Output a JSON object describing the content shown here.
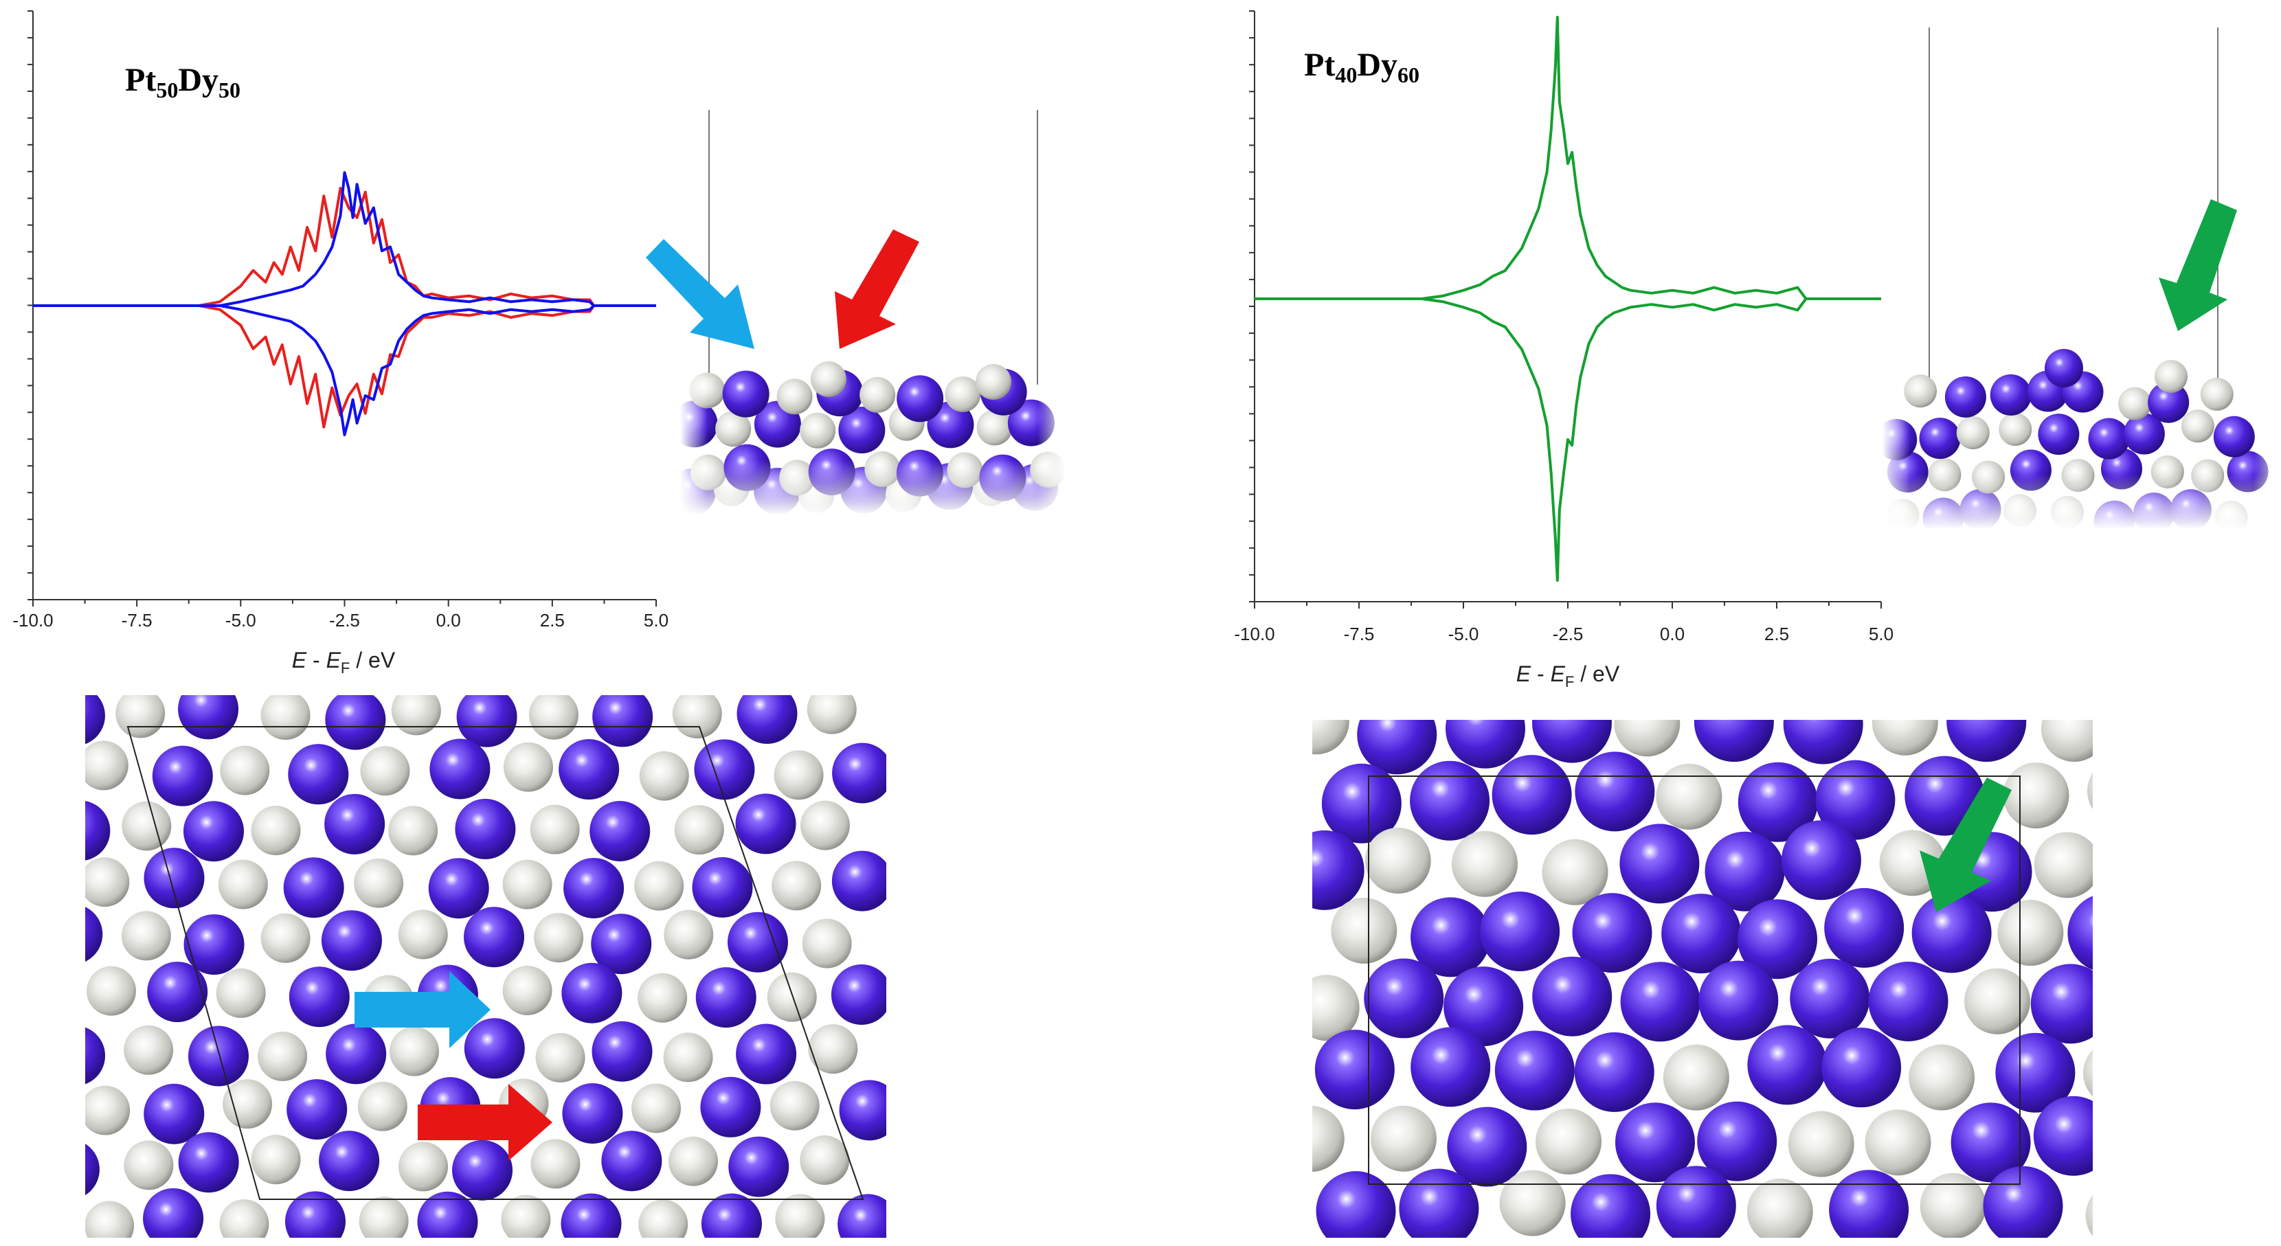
{
  "chart_data": [
    {
      "type": "line",
      "title": "Pt50Dy50",
      "title_parts": {
        "a": "Pt",
        "a_sub": "50",
        "b": "Dy",
        "b_sub": "50"
      },
      "xlabel": "E - EF / eV",
      "xlabel_parts": {
        "e1": "E",
        "mid": " - ",
        "e2": "E",
        "e2_sub": "F",
        "unit": " / eV"
      },
      "xlim": [
        -10.0,
        5.0
      ],
      "x_ticks": [
        "-10.0",
        "-7.5",
        "-5.0",
        "-2.5",
        "0.0",
        "2.5",
        "5.0"
      ],
      "ylim": [
        -1.0,
        1.0
      ],
      "y_tick_labels": "none",
      "grid": false,
      "series": [
        {
          "color": "#e8201e",
          "x": [
            -10.0,
            -6.0,
            -5.5,
            -5.0,
            -4.7,
            -4.4,
            -4.2,
            -4.0,
            -3.8,
            -3.6,
            -3.4,
            -3.2,
            -3.0,
            -2.8,
            -2.6,
            -2.4,
            -2.2,
            -2.0,
            -1.8,
            -1.6,
            -1.4,
            -1.2,
            -1.0,
            -0.8,
            -0.6,
            -0.4,
            0.0,
            0.5,
            1.0,
            1.5,
            2.0,
            2.5,
            3.0,
            3.4,
            3.5,
            5.0
          ],
          "up": [
            0.0,
            0.0,
            0.02,
            0.1,
            0.18,
            0.12,
            0.22,
            0.16,
            0.3,
            0.18,
            0.4,
            0.28,
            0.56,
            0.35,
            0.6,
            0.5,
            0.45,
            0.58,
            0.32,
            0.44,
            0.22,
            0.26,
            0.12,
            0.1,
            0.05,
            0.06,
            0.04,
            0.05,
            0.03,
            0.06,
            0.04,
            0.05,
            0.03,
            0.03,
            0.0,
            0.0
          ],
          "down": [
            0.0,
            0.0,
            -0.02,
            -0.1,
            -0.22,
            -0.16,
            -0.3,
            -0.2,
            -0.4,
            -0.26,
            -0.5,
            -0.35,
            -0.62,
            -0.42,
            -0.56,
            -0.46,
            -0.4,
            -0.55,
            -0.35,
            -0.45,
            -0.25,
            -0.26,
            -0.14,
            -0.1,
            -0.06,
            -0.06,
            -0.04,
            -0.05,
            -0.03,
            -0.06,
            -0.04,
            -0.05,
            -0.03,
            -0.03,
            0.0,
            0.0
          ]
        },
        {
          "color": "#1010ee",
          "x": [
            -10.0,
            -6.0,
            -5.5,
            -5.0,
            -4.6,
            -4.2,
            -3.8,
            -3.5,
            -3.2,
            -3.0,
            -2.8,
            -2.6,
            -2.5,
            -2.4,
            -2.3,
            -2.2,
            -2.0,
            -1.8,
            -1.6,
            -1.4,
            -1.2,
            -1.0,
            -0.8,
            -0.6,
            -0.4,
            0.0,
            0.5,
            1.0,
            1.5,
            2.0,
            2.5,
            3.0,
            3.4,
            3.5,
            5.0
          ],
          "up": [
            0.0,
            0.0,
            0.0,
            0.02,
            0.04,
            0.06,
            0.08,
            0.1,
            0.16,
            0.22,
            0.3,
            0.46,
            0.68,
            0.6,
            0.45,
            0.62,
            0.42,
            0.5,
            0.28,
            0.3,
            0.16,
            0.12,
            0.08,
            0.05,
            0.04,
            0.03,
            0.02,
            0.04,
            0.02,
            0.03,
            0.02,
            0.03,
            0.02,
            0.0,
            0.0
          ],
          "down": [
            0.0,
            0.0,
            0.0,
            -0.02,
            -0.04,
            -0.06,
            -0.08,
            -0.12,
            -0.18,
            -0.25,
            -0.34,
            -0.52,
            -0.66,
            -0.58,
            -0.48,
            -0.6,
            -0.46,
            -0.48,
            -0.32,
            -0.3,
            -0.18,
            -0.12,
            -0.08,
            -0.05,
            -0.04,
            -0.03,
            -0.02,
            -0.04,
            -0.02,
            -0.03,
            -0.02,
            -0.03,
            -0.02,
            0.0,
            0.0
          ]
        }
      ]
    },
    {
      "type": "line",
      "title": "Pt40Dy60",
      "title_parts": {
        "a": "Pt",
        "a_sub": "40",
        "b": "Dy",
        "b_sub": "60"
      },
      "xlabel": "E - EF / eV",
      "xlabel_parts": {
        "e1": "E",
        "mid": " - ",
        "e2": "E",
        "e2_sub": "F",
        "unit": " / eV"
      },
      "xlim": [
        -10.0,
        5.0
      ],
      "x_ticks": [
        "-10.0",
        "-7.5",
        "-5.0",
        "-2.5",
        "0.0",
        "2.5",
        "5.0"
      ],
      "ylim": [
        -1.0,
        1.0
      ],
      "y_tick_labels": "none",
      "grid": false,
      "series": [
        {
          "color": "#14a030",
          "x": [
            -10.0,
            -6.0,
            -5.5,
            -5.0,
            -4.6,
            -4.3,
            -4.0,
            -3.8,
            -3.6,
            -3.4,
            -3.2,
            -3.0,
            -2.9,
            -2.8,
            -2.75,
            -2.7,
            -2.6,
            -2.5,
            -2.4,
            -2.3,
            -2.2,
            -2.0,
            -1.8,
            -1.6,
            -1.4,
            -1.2,
            -1.0,
            -0.5,
            0.0,
            0.5,
            1.0,
            1.5,
            2.0,
            2.5,
            3.0,
            3.2,
            4.5,
            5.0
          ],
          "up": [
            0.0,
            0.0,
            0.01,
            0.03,
            0.05,
            0.08,
            0.1,
            0.14,
            0.18,
            0.25,
            0.32,
            0.45,
            0.6,
            0.82,
            1.0,
            0.7,
            0.6,
            0.48,
            0.52,
            0.4,
            0.3,
            0.18,
            0.12,
            0.08,
            0.06,
            0.04,
            0.03,
            0.02,
            0.03,
            0.02,
            0.04,
            0.02,
            0.03,
            0.02,
            0.04,
            0.0,
            0.0,
            0.0
          ],
          "down": [
            0.0,
            0.0,
            -0.01,
            -0.03,
            -0.05,
            -0.08,
            -0.1,
            -0.14,
            -0.18,
            -0.25,
            -0.32,
            -0.45,
            -0.62,
            -0.85,
            -1.0,
            -0.75,
            -0.62,
            -0.5,
            -0.52,
            -0.38,
            -0.28,
            -0.16,
            -0.1,
            -0.07,
            -0.05,
            -0.04,
            -0.03,
            -0.02,
            -0.03,
            -0.02,
            -0.04,
            -0.02,
            -0.03,
            -0.02,
            -0.04,
            0.0,
            0.0,
            0.0
          ]
        }
      ]
    }
  ],
  "atom_colors": {
    "pt": "#d8d8d2",
    "dy": "#4a1fd6"
  },
  "arrow_colors": {
    "cyan": "#18a8e8",
    "red": "#e81515",
    "green": "#10a548"
  }
}
